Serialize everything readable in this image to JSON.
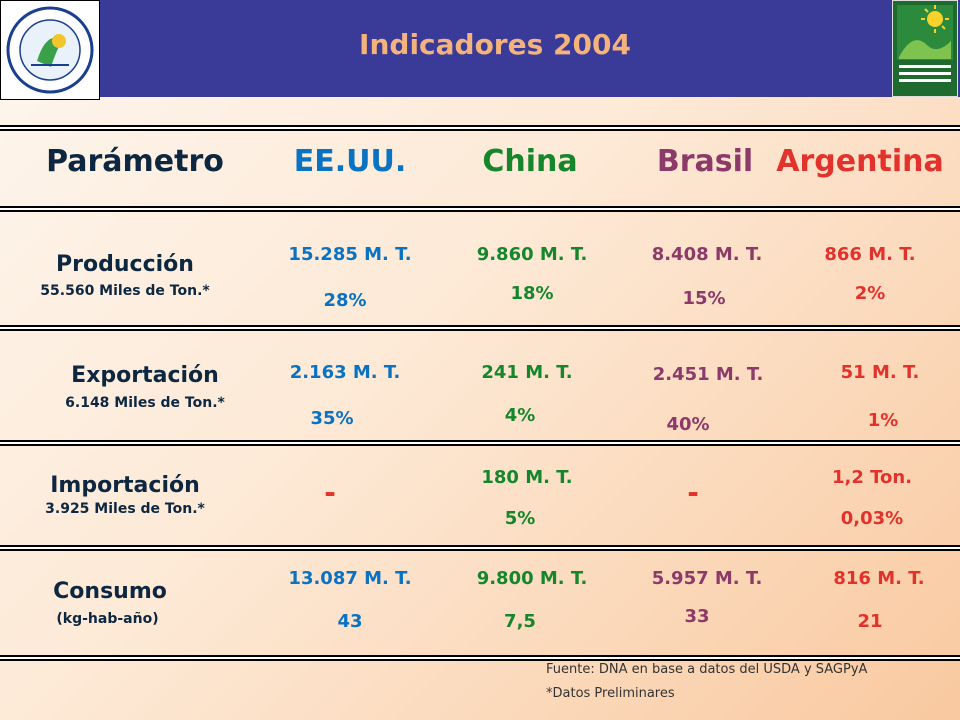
{
  "title": "Indicadores 2004",
  "logos": {
    "left_text": "ALIMENTOS ARGENTINOS Una Elección Natural",
    "right_text": "Secretaría de Agricultura Ganadería, Pesca y Alimentos"
  },
  "columns": {
    "parametro": "Parámetro",
    "eeuu": "EE.UU.",
    "china": "China",
    "brasil": "Brasil",
    "argentina": "Argentina"
  },
  "rows": {
    "produccion": {
      "title": "Producción",
      "sub": "55.560 Miles de Ton.*",
      "eeuu": [
        "15.285 M. T.",
        "28%"
      ],
      "china": [
        "9.860 M. T.",
        "18%"
      ],
      "brasil": [
        "8.408 M. T.",
        "15%"
      ],
      "argentina": [
        "866 M. T.",
        "2%"
      ]
    },
    "exportacion": {
      "title": "Exportación",
      "sub": "6.148 Miles de Ton.*",
      "eeuu": [
        "2.163 M. T.",
        "35%"
      ],
      "china": [
        "241 M. T.",
        "4%"
      ],
      "brasil": [
        "2.451 M. T.",
        "40%"
      ],
      "argentina": [
        "51 M. T.",
        "1%"
      ]
    },
    "importacion": {
      "title": "Importación",
      "sub": "3.925 Miles de Ton.*",
      "eeuu": "-",
      "china": [
        "180 M. T.",
        "5%"
      ],
      "brasil": "-",
      "argentina": [
        "1,2 Ton.",
        "0,03%"
      ]
    },
    "consumo": {
      "title": "Consumo",
      "sub": "(kg-hab-año)",
      "eeuu": [
        "13.087 M. T.",
        "43"
      ],
      "china": [
        "9.800 M. T.",
        "7,5"
      ],
      "brasil": [
        "5.957 M. T.",
        "33"
      ],
      "argentina": [
        "816 M. T.",
        "21"
      ]
    }
  },
  "footer": {
    "source": "Fuente: DNA en base a datos del USDA y SAGPyA",
    "note": "*Datos Preliminares"
  },
  "colors": {
    "header_bg": "#3a3a98",
    "title": "#f4b27c",
    "eeuu": "#0a72c2",
    "china": "#16862c",
    "brasil": "#8b3a69",
    "argentina": "#e2322c",
    "row_label": "#0e2740"
  }
}
